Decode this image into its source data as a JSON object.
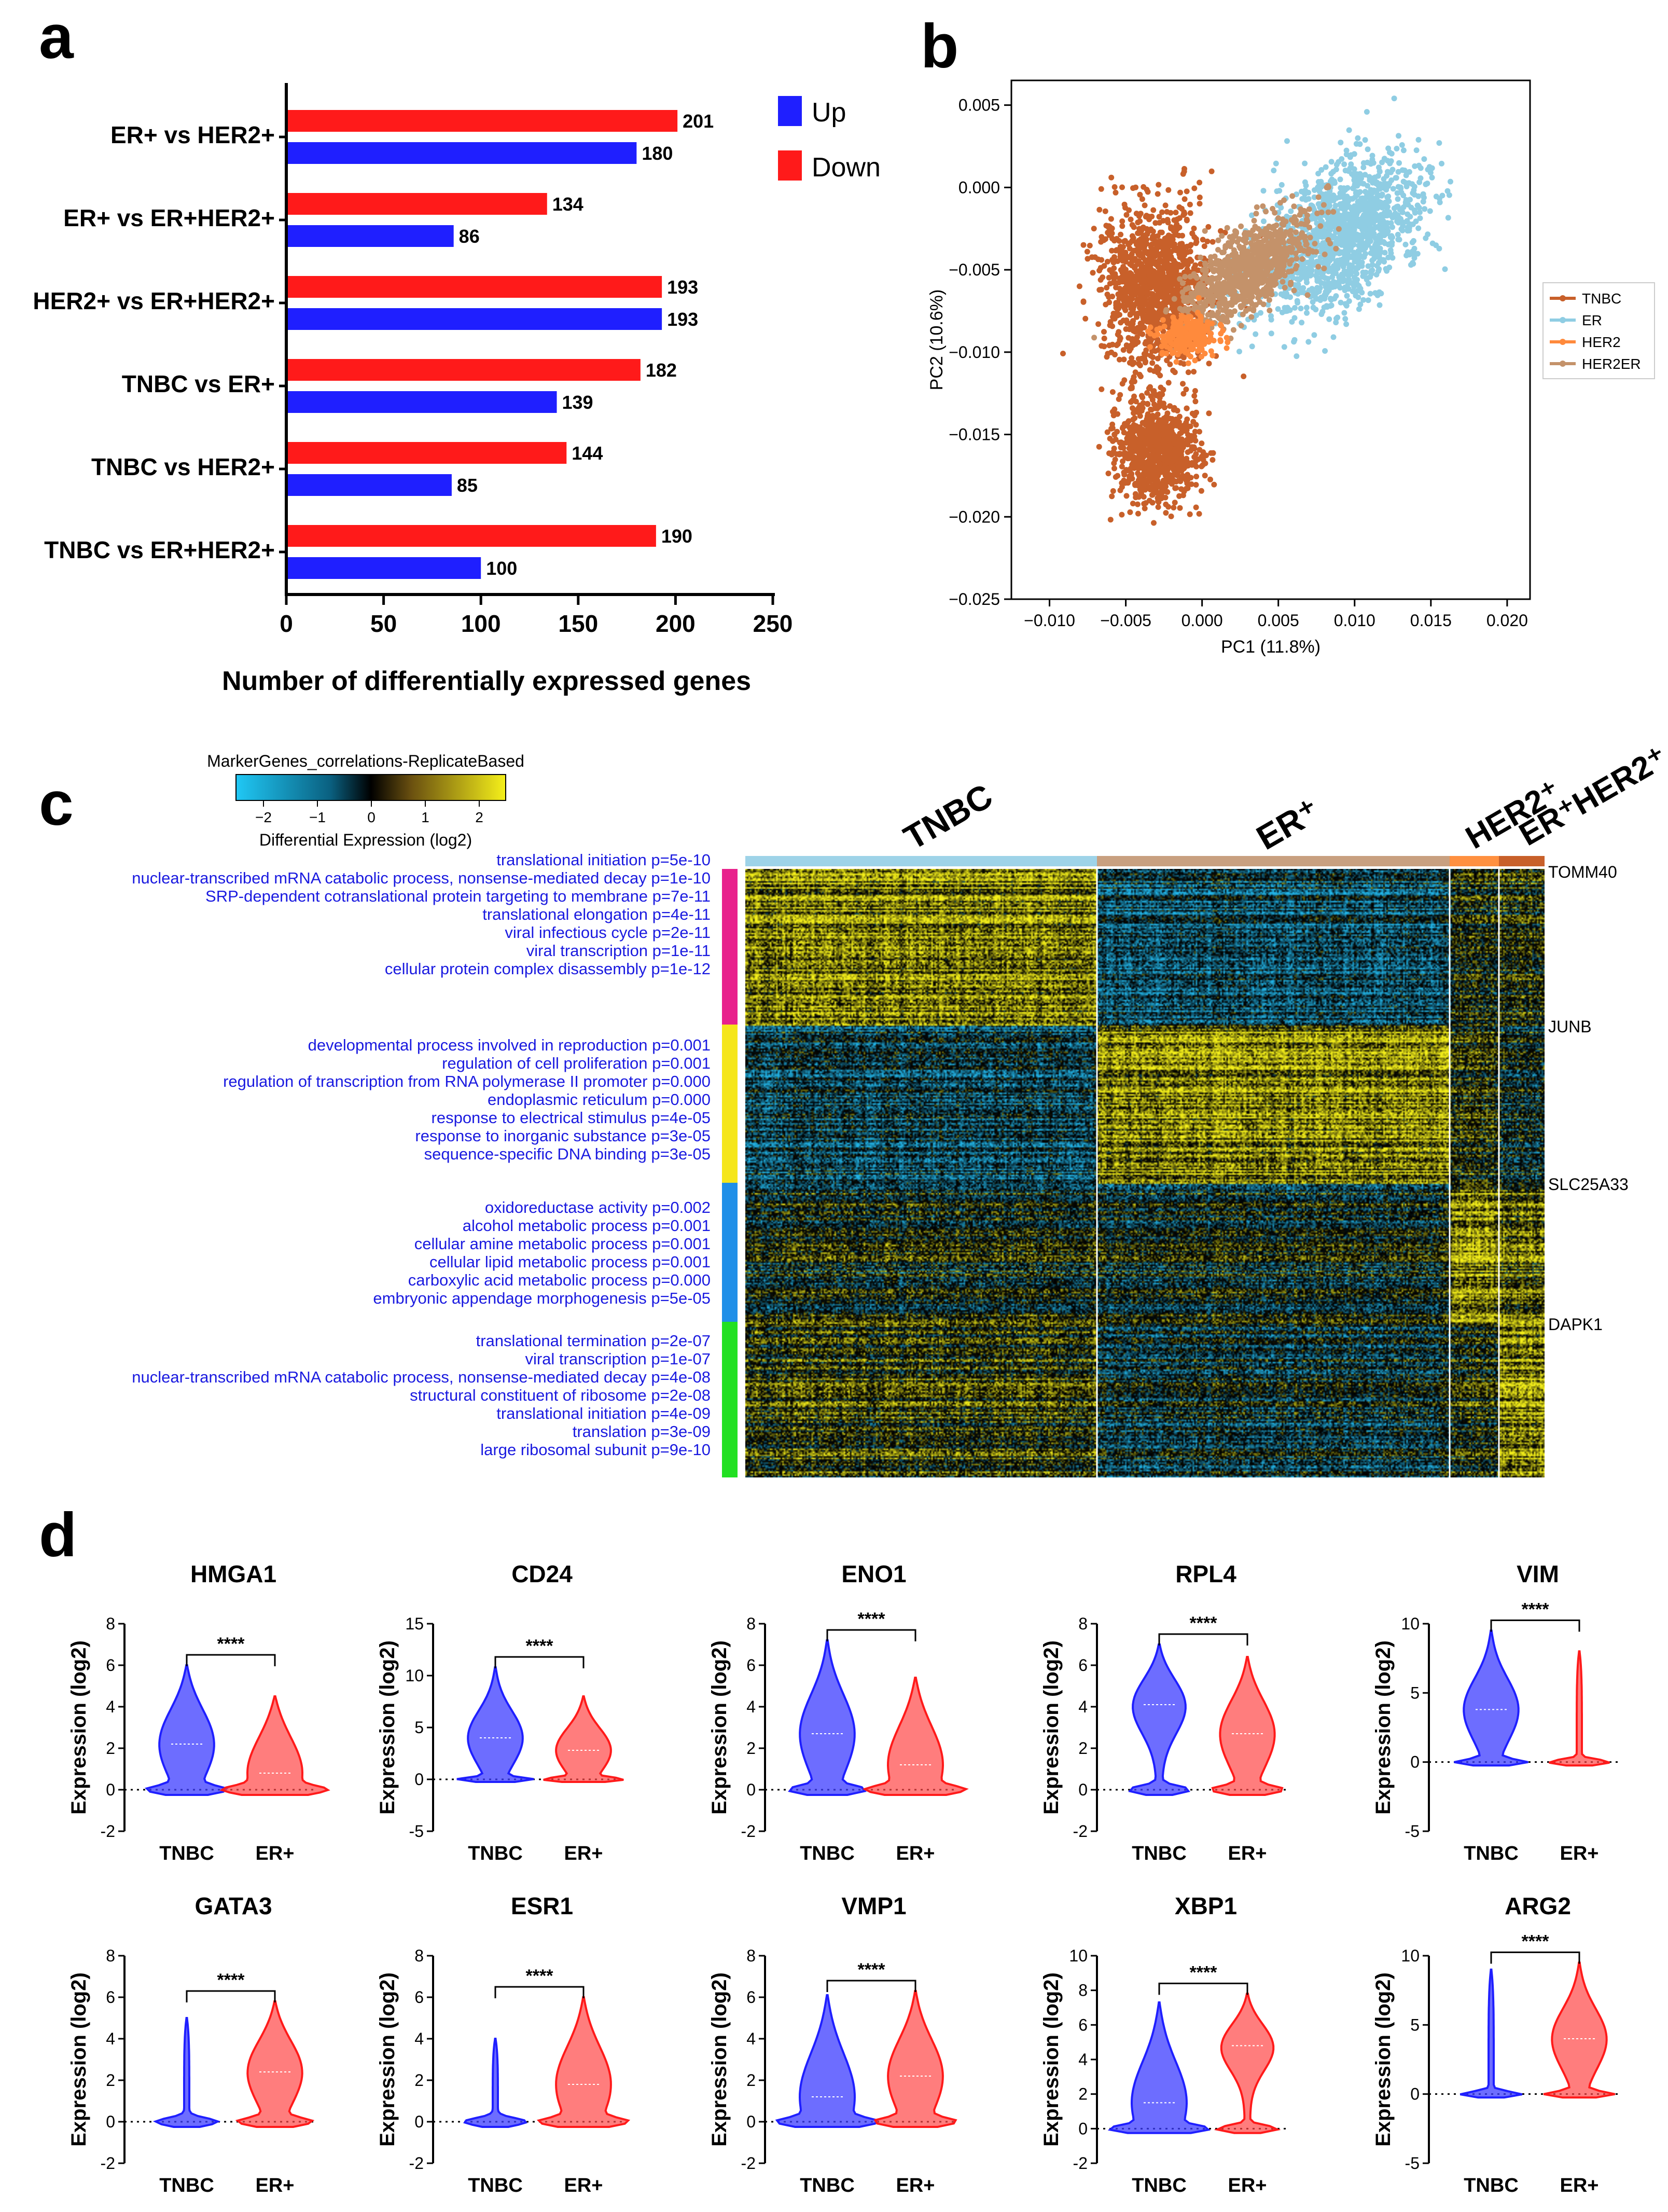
{
  "panels": {
    "a": "a",
    "b": "b",
    "c": "c",
    "d": "d"
  },
  "colors": {
    "up": "#1f1fff",
    "down": "#ff1a1a",
    "tnbc": "#c8602a",
    "er": "#8fcde3",
    "her2": "#ff8a3c",
    "her2er": "#c4926a",
    "go_text": "#1a1ae0",
    "heat_yellow": "#f5f01a",
    "heat_cyan": "#22b5e8"
  },
  "chart_data": [
    {
      "type": "bar",
      "orientation": "horizontal",
      "categories": [
        "ER+ vs HER2+",
        "ER+ vs ER+HER2+",
        "HER2+ vs ER+HER2+",
        "TNBC vs ER+",
        "TNBC vs HER2+",
        "TNBC vs ER+HER2+"
      ],
      "series": [
        {
          "name": "Up",
          "values": [
            180,
            86,
            193,
            139,
            85,
            100
          ]
        },
        {
          "name": "Down",
          "values": [
            201,
            134,
            193,
            182,
            144,
            190
          ]
        }
      ],
      "xlabel": "Number of differentially expressed genes",
      "xlim": [
        0,
        250
      ],
      "xticks": [
        "0",
        "50",
        "100",
        "150",
        "200",
        "250"
      ],
      "legend": [
        "Up",
        "Down"
      ]
    },
    {
      "type": "scatter",
      "xlabel": "PC1 (11.8%)",
      "ylabel": "PC2 (10.6%)",
      "xlim": [
        -0.0125,
        0.0215
      ],
      "ylim": [
        -0.025,
        0.0065
      ],
      "xticks": [
        "−0.010",
        "−0.005",
        "0.000",
        "0.005",
        "0.010",
        "0.015",
        "0.020"
      ],
      "yticks": [
        "0.005",
        "0.000",
        "−0.005",
        "−0.010",
        "−0.015",
        "−0.020",
        "−0.025"
      ],
      "legend": [
        "TNBC",
        "ER",
        "HER2",
        "HER2ER"
      ],
      "clusters": [
        {
          "name": "ER",
          "cx": 0.009,
          "cy": -0.003,
          "sx": 0.0045,
          "sy": 0.0035
        },
        {
          "name": "TNBC",
          "cx": -0.003,
          "cy": -0.006,
          "sx": 0.003,
          "sy": 0.004
        },
        {
          "name": "TNBC",
          "cx": -0.003,
          "cy": -0.016,
          "sx": 0.0022,
          "sy": 0.0025
        },
        {
          "name": "HER2ER",
          "cx": 0.003,
          "cy": -0.005,
          "sx": 0.0035,
          "sy": 0.002
        },
        {
          "name": "HER2",
          "cx": -0.001,
          "cy": -0.009,
          "sx": 0.0015,
          "sy": 0.001
        }
      ]
    },
    {
      "type": "heatmap",
      "colorbar_title": "MarkerGenes_correlations-ReplicateBased",
      "colorbar_label": "Differential Expression (log2)",
      "colorbar_ticks": [
        "−2",
        "−1",
        "0",
        "1",
        "2"
      ],
      "columns": [
        "TNBC",
        "ER⁺",
        "HER2⁺",
        "ER⁺HER2⁺"
      ],
      "genes": [
        "TOMM40",
        "JUNB",
        "SLC25A33",
        "DAPK1"
      ],
      "go_blocks": [
        [
          "translational initiation p=5e-10",
          "nuclear-transcribed mRNA catabolic process, nonsense-mediated decay p=1e-10",
          "SRP-dependent cotranslational protein targeting to membrane p=7e-11",
          "translational elongation p=4e-11",
          "viral infectious cycle p=2e-11",
          "viral transcription p=1e-11",
          "cellular protein complex disassembly p=1e-12"
        ],
        [
          "developmental process involved in reproduction p=0.001",
          "regulation of cell proliferation p=0.001",
          "regulation of transcription from RNA polymerase II promoter p=0.000",
          "endoplasmic reticulum p=0.000",
          "response to electrical stimulus p=4e-05",
          "response to inorganic substance p=3e-05",
          "sequence-specific DNA binding p=3e-05"
        ],
        [
          "oxidoreductase activity p=0.002",
          "alcohol metabolic process p=0.001",
          "cellular amine metabolic process p=0.001",
          "cellular lipid metabolic process p=0.001",
          "carboxylic acid metabolic process p=0.000",
          "embryonic appendage morphogenesis p=5e-05"
        ],
        [
          "translational termination p=2e-07",
          "viral transcription p=1e-07",
          "nuclear-transcribed mRNA catabolic process, nonsense-mediated decay p=4e-08",
          "structural constituent of ribosome p=2e-08",
          "translational initiation p=4e-09",
          "translation p=3e-09",
          "large ribosomal subunit p=9e-10"
        ]
      ],
      "block_colors": [
        "#e8218c",
        "#f5e61a",
        "#1f8fe8",
        "#22e022"
      ]
    },
    {
      "type": "violin",
      "ylabel": "Expression  (log2)",
      "groups": [
        "TNBC",
        "ER+"
      ],
      "significance": "****",
      "plots": [
        {
          "gene": "HMGA1",
          "ylim": [
            -2,
            8
          ],
          "yticks": [
            "8",
            "6",
            "4",
            "2",
            "0",
            "-2"
          ],
          "tnbc_max": 6.0,
          "er_max": 4.5,
          "tnbc_mode": 2.2,
          "er_mode": 0.8
        },
        {
          "gene": "CD24",
          "ylim": [
            -5,
            15
          ],
          "yticks": [
            "15",
            "10",
            "5",
            "0",
            "-5"
          ],
          "tnbc_max": 10.8,
          "er_max": 8.0,
          "tnbc_mode": 4.0,
          "er_mode": 2.8
        },
        {
          "gene": "ENO1",
          "ylim": [
            -2,
            8
          ],
          "yticks": [
            "8",
            "6",
            "4",
            "2",
            "0",
            "-2"
          ],
          "tnbc_max": 7.2,
          "er_max": 5.4,
          "tnbc_mode": 2.7,
          "er_mode": 1.2
        },
        {
          "gene": "RPL4",
          "ylim": [
            -2,
            8
          ],
          "yticks": [
            "8",
            "6",
            "4",
            "2",
            "0",
            "-2"
          ],
          "tnbc_max": 7.0,
          "er_max": 6.4,
          "tnbc_mode": 4.1,
          "er_mode": 2.7
        },
        {
          "gene": "VIM",
          "ylim": [
            -5,
            10
          ],
          "yticks": [
            "10",
            "5",
            "0",
            "-5"
          ],
          "tnbc_max": 9.5,
          "er_max": 8.0,
          "tnbc_mode": 3.8,
          "er_mode": 0.0
        },
        {
          "gene": "GATA3",
          "ylim": [
            -2,
            8
          ],
          "yticks": [
            "8",
            "6",
            "4",
            "2",
            "0",
            "-2"
          ],
          "tnbc_max": 5.0,
          "er_max": 5.8,
          "tnbc_mode": 0.0,
          "er_mode": 2.4
        },
        {
          "gene": "ESR1",
          "ylim": [
            -2,
            8
          ],
          "yticks": [
            "8",
            "6",
            "4",
            "2",
            "0",
            "-2"
          ],
          "tnbc_max": 4.0,
          "er_max": 6.0,
          "tnbc_mode": 0.0,
          "er_mode": 1.8
        },
        {
          "gene": "VMP1",
          "ylim": [
            -2,
            8
          ],
          "yticks": [
            "8",
            "6",
            "4",
            "2",
            "0",
            "-2"
          ],
          "tnbc_max": 6.1,
          "er_max": 6.3,
          "tnbc_mode": 1.2,
          "er_mode": 2.2
        },
        {
          "gene": "XBP1",
          "ylim": [
            -2,
            10
          ],
          "yticks": [
            "10",
            "8",
            "6",
            "4",
            "2",
            "0",
            "-2"
          ],
          "tnbc_max": 7.3,
          "er_max": 7.8,
          "tnbc_mode": 1.5,
          "er_mode": 4.8
        },
        {
          "gene": "ARG2",
          "ylim": [
            -5,
            10
          ],
          "yticks": [
            "10",
            "5",
            "0",
            "-5"
          ],
          "tnbc_max": 9.0,
          "er_max": 9.5,
          "tnbc_mode": 0.0,
          "er_mode": 4.0
        }
      ]
    }
  ]
}
